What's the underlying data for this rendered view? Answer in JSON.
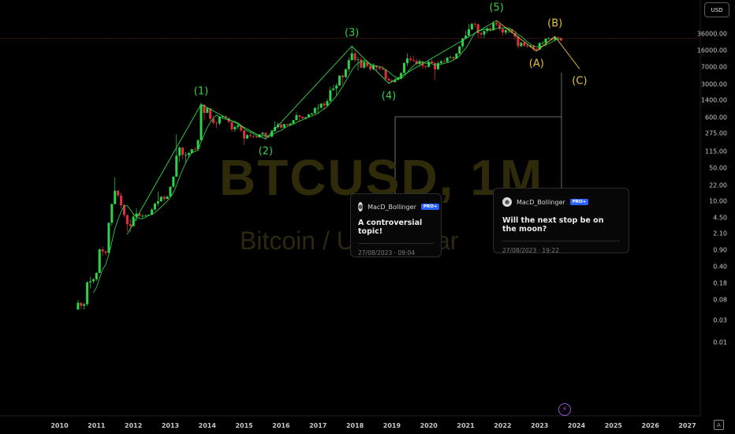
{
  "watermark": {
    "title": "BTCUSD, 1M",
    "subtitle": "Bitcoin / U.S. Dollar"
  },
  "currency": "USD",
  "chart_data": {
    "type": "candlestick",
    "scale": "log",
    "y_ticks": [
      "36000.00",
      "16000.00",
      "7000.00",
      "3000.00",
      "1400.00",
      "600.00",
      "275.00",
      "115.00",
      "50.00",
      "22.00",
      "10.00",
      "4.50",
      "2.10",
      "0.90",
      "0.40",
      "0.18",
      "0.08",
      "0.03",
      "0.01"
    ],
    "x_ticks": [
      "2010",
      "2011",
      "2012",
      "2013",
      "2014",
      "2015",
      "2016",
      "2017",
      "2018",
      "2019",
      "2020",
      "2021",
      "2022",
      "2023",
      "2024",
      "2025",
      "2026",
      "2027"
    ],
    "price_line": 29000,
    "ohlc_monthly": [
      [
        0.05,
        0.08,
        0.05,
        0.07
      ],
      [
        0.07,
        0.07,
        0.05,
        0.06
      ],
      [
        0.06,
        0.07,
        0.05,
        0.065
      ],
      [
        0.065,
        0.2,
        0.06,
        0.19
      ],
      [
        0.19,
        0.25,
        0.14,
        0.2
      ],
      [
        0.2,
        0.23,
        0.18,
        0.22
      ],
      [
        0.22,
        0.31,
        0.2,
        0.3
      ],
      [
        0.3,
        1.0,
        0.3,
        0.95
      ],
      [
        0.95,
        1.1,
        0.7,
        0.86
      ],
      [
        0.86,
        0.9,
        0.7,
        0.8
      ],
      [
        0.8,
        3.5,
        0.8,
        3.5
      ],
      [
        3.5,
        9.0,
        3.0,
        8.7
      ],
      [
        8.7,
        32,
        8.7,
        16.8
      ],
      [
        16.8,
        17.5,
        12,
        13.3
      ],
      [
        13.3,
        15.4,
        7,
        8.2
      ],
      [
        8.2,
        8.9,
        4.6,
        5.1
      ],
      [
        5.1,
        5.2,
        2.3,
        3.25
      ],
      [
        3.25,
        4.2,
        2.2,
        2.97
      ],
      [
        2.97,
        5.3,
        2.9,
        4.72
      ],
      [
        4.72,
        7.1,
        3.8,
        5.5
      ],
      [
        5.5,
        6.0,
        4.2,
        4.9
      ],
      [
        4.9,
        5.3,
        4.4,
        4.9
      ],
      [
        4.9,
        5.3,
        4.7,
        4.95
      ],
      [
        4.95,
        5.2,
        4.9,
        5.2
      ],
      [
        5.2,
        7.2,
        5.0,
        6.7
      ],
      [
        6.7,
        9.2,
        6.4,
        9.0
      ],
      [
        9.0,
        16,
        7.8,
        10.0
      ],
      [
        10.0,
        13.2,
        9.6,
        12.4
      ],
      [
        12.4,
        13.6,
        9.8,
        11.2
      ],
      [
        11.2,
        13.5,
        11.0,
        12.6
      ],
      [
        12.6,
        20.7,
        12.6,
        20.4
      ],
      [
        20.4,
        35,
        19.5,
        33.4
      ],
      [
        33.4,
        266,
        33,
        93
      ],
      [
        93,
        146,
        68,
        139
      ],
      [
        139,
        140,
        79,
        97
      ],
      [
        97,
        110,
        66,
        97
      ],
      [
        97,
        112,
        84,
        106
      ],
      [
        106,
        129,
        103,
        128
      ],
      [
        128,
        144,
        117,
        127
      ],
      [
        127,
        213,
        123,
        198
      ],
      [
        198,
        1242,
        198,
        1130
      ],
      [
        1130,
        1160,
        520,
        757
      ],
      [
        757,
        1000,
        750,
        950
      ],
      [
        950,
        700,
        500,
        565
      ],
      [
        565,
        650,
        440,
        465
      ],
      [
        465,
        500,
        350,
        450
      ],
      [
        450,
        640,
        410,
        630
      ],
      [
        630,
        650,
        560,
        640
      ],
      [
        640,
        660,
        550,
        582
      ],
      [
        582,
        600,
        460,
        485
      ],
      [
        485,
        490,
        300,
        338
      ],
      [
        338,
        420,
        300,
        380
      ],
      [
        380,
        460,
        340,
        410
      ],
      [
        410,
        425,
        300,
        320
      ],
      [
        320,
        320,
        160,
        216
      ],
      [
        216,
        270,
        210,
        254
      ],
      [
        254,
        300,
        230,
        244
      ],
      [
        244,
        250,
        220,
        236
      ],
      [
        236,
        250,
        220,
        230
      ],
      [
        230,
        268,
        220,
        264
      ],
      [
        264,
        300,
        260,
        284
      ],
      [
        284,
        290,
        210,
        230
      ],
      [
        230,
        250,
        225,
        236
      ],
      [
        236,
        330,
        230,
        314
      ],
      [
        314,
        500,
        300,
        378
      ],
      [
        378,
        470,
        350,
        430
      ],
      [
        430,
        450,
        350,
        368
      ],
      [
        368,
        440,
        360,
        437
      ],
      [
        437,
        440,
        400,
        416
      ],
      [
        416,
        470,
        410,
        448
      ],
      [
        448,
        530,
        440,
        531
      ],
      [
        531,
        780,
        520,
        673
      ],
      [
        673,
        680,
        480,
        625
      ],
      [
        625,
        630,
        560,
        574
      ],
      [
        574,
        620,
        600,
        610
      ],
      [
        610,
        740,
        610,
        700
      ],
      [
        700,
        750,
        690,
        740
      ],
      [
        740,
        980,
        730,
        965
      ],
      [
        965,
        1160,
        750,
        970
      ],
      [
        970,
        1200,
        930,
        1190
      ],
      [
        1190,
        1300,
        890,
        1080
      ],
      [
        1080,
        1500,
        1060,
        1348
      ],
      [
        1348,
        2760,
        1340,
        2290
      ],
      [
        2290,
        2970,
        2300,
        2480
      ],
      [
        2480,
        3200,
        1800,
        2870
      ],
      [
        2870,
        4700,
        2870,
        4700
      ],
      [
        4700,
        5000,
        3000,
        4340
      ],
      [
        4340,
        6470,
        4200,
        6450
      ],
      [
        6450,
        11400,
        5500,
        10000
      ],
      [
        10000,
        19800,
        9700,
        13900
      ],
      [
        13900,
        17200,
        9100,
        10100
      ],
      [
        10100,
        11800,
        6000,
        10300
      ],
      [
        10300,
        11700,
        8300,
        6900
      ],
      [
        6900,
        9700,
        6600,
        9200
      ],
      [
        9200,
        9900,
        7000,
        7500
      ],
      [
        7500,
        7800,
        5800,
        6400
      ],
      [
        6400,
        8500,
        6100,
        7700
      ],
      [
        7700,
        7800,
        5900,
        7000
      ],
      [
        7000,
        7400,
        6100,
        6600
      ],
      [
        6600,
        7600,
        6200,
        6300
      ],
      [
        6300,
        6500,
        3600,
        4000
      ],
      [
        4000,
        4400,
        3100,
        3700
      ],
      [
        3700,
        4000,
        3300,
        3400
      ],
      [
        3400,
        4200,
        3300,
        3800
      ],
      [
        3800,
        4100,
        3700,
        4100
      ],
      [
        4100,
        5600,
        4100,
        5300
      ],
      [
        5300,
        9000,
        5300,
        8600
      ],
      [
        8600,
        13900,
        7500,
        10800
      ],
      [
        10800,
        12300,
        9100,
        10000
      ],
      [
        10000,
        12300,
        9300,
        9600
      ],
      [
        9600,
        10900,
        7700,
        8300
      ],
      [
        8300,
        10400,
        7300,
        9200
      ],
      [
        9200,
        9500,
        6500,
        7500
      ],
      [
        7500,
        7750,
        6400,
        7200
      ],
      [
        7200,
        9500,
        6900,
        9350
      ],
      [
        9350,
        10500,
        8500,
        8600
      ],
      [
        8600,
        9200,
        3800,
        6400
      ],
      [
        6400,
        9400,
        6200,
        8600
      ],
      [
        8600,
        10000,
        8100,
        9450
      ],
      [
        9450,
        10400,
        8900,
        9150
      ],
      [
        9150,
        11400,
        9050,
        11350
      ],
      [
        11350,
        12500,
        10500,
        11650
      ],
      [
        11650,
        12000,
        9900,
        10800
      ],
      [
        10800,
        14000,
        10500,
        13800
      ],
      [
        13800,
        19800,
        13200,
        19700
      ],
      [
        19700,
        29300,
        17600,
        29000
      ],
      [
        29000,
        41900,
        28100,
        33100
      ],
      [
        33100,
        58400,
        32300,
        45100
      ],
      [
        45100,
        61700,
        43000,
        58800
      ],
      [
        58800,
        64800,
        50000,
        57800
      ],
      [
        57800,
        59600,
        30000,
        37300
      ],
      [
        37300,
        41300,
        28800,
        35000
      ],
      [
        35000,
        42600,
        29300,
        41500
      ],
      [
        41500,
        50500,
        37300,
        47100
      ],
      [
        47100,
        52900,
        40500,
        43800
      ],
      [
        43800,
        67000,
        43300,
        61300
      ],
      [
        61300,
        69000,
        53000,
        57000
      ],
      [
        57000,
        59000,
        42000,
        46200
      ],
      [
        46200,
        47900,
        33000,
        38500
      ],
      [
        38500,
        45800,
        34300,
        43200
      ],
      [
        43200,
        48200,
        37200,
        45500
      ],
      [
        45500,
        47400,
        37600,
        37700
      ],
      [
        37700,
        40000,
        26700,
        31800
      ],
      [
        31800,
        32300,
        17600,
        19800
      ],
      [
        19800,
        24600,
        18800,
        23300
      ],
      [
        23300,
        25200,
        19600,
        20000
      ],
      [
        20000,
        22700,
        18200,
        19400
      ],
      [
        19400,
        21000,
        18200,
        20500
      ],
      [
        20500,
        21400,
        15500,
        17200
      ],
      [
        17200,
        18400,
        16300,
        16550
      ],
      [
        16550,
        23900,
        16500,
        23100
      ],
      [
        23100,
        25200,
        21400,
        23150
      ],
      [
        23150,
        28900,
        19600,
        28500
      ],
      [
        28500,
        31000,
        26900,
        29200
      ],
      [
        29200,
        29800,
        25800,
        27200
      ],
      [
        27200,
        31400,
        24800,
        30500
      ],
      [
        30500,
        31800,
        28900,
        29200
      ],
      [
        29200,
        30200,
        25400,
        26100
      ]
    ],
    "waves": [
      {
        "label": "(1)",
        "x": "2013-11",
        "y": 1150,
        "color": "green",
        "pos": "above"
      },
      {
        "label": "(2)",
        "x": "2015-08",
        "y": 210,
        "color": "green",
        "pos": "below"
      },
      {
        "label": "(3)",
        "x": "2017-12",
        "y": 19800,
        "color": "green",
        "pos": "above"
      },
      {
        "label": "(4)",
        "x": "2018-12",
        "y": 3200,
        "color": "green",
        "pos": "below"
      },
      {
        "label": "(5)",
        "x": "2021-11",
        "y": 69000,
        "color": "green",
        "pos": "above"
      },
      {
        "label": "(A)",
        "x": "2022-12",
        "y": 15500,
        "color": "yellow",
        "pos": "below"
      },
      {
        "label": "(B)",
        "x": "2023-06",
        "y": 31800,
        "color": "yellow",
        "pos": "above"
      },
      {
        "label": "(C)",
        "x": "2024-02",
        "y": 6500,
        "color": "yellow",
        "pos": "below"
      }
    ]
  },
  "ideas": [
    {
      "author": "MacD_Bollinger",
      "badge": "PRO+",
      "text": "A controversial topic!",
      "date": "27/08/2023 · 09:04"
    },
    {
      "author": "MacD_Bollinger",
      "badge": "PRO+",
      "text": "Will the next stop be on the moon?",
      "date": "27/08/2023 · 19:22"
    }
  ]
}
